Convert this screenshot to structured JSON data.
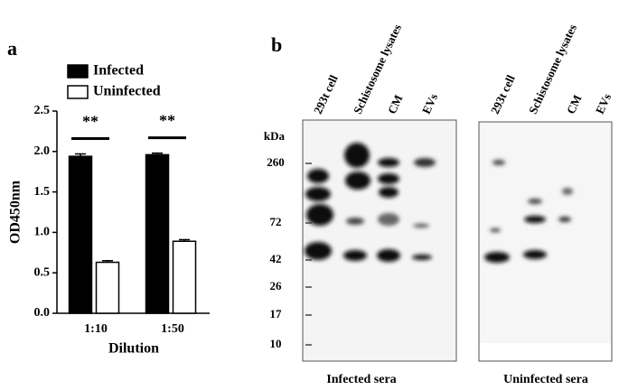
{
  "panel_a": "a",
  "panel_b": "b",
  "chart_data": {
    "type": "bar",
    "ylabel": "OD450nm",
    "xlabel": "Dilution",
    "categories": [
      "1:10",
      "1:50"
    ],
    "series": [
      {
        "name": "Infected",
        "color": "#000000",
        "values": [
          1.94,
          1.96
        ],
        "errors": [
          0.03,
          0.02
        ]
      },
      {
        "name": "Uninfected",
        "color": "#ffffff",
        "values": [
          0.63,
          0.89
        ],
        "errors": [
          0.02,
          0.02
        ]
      }
    ],
    "annotations": [
      "**",
      "**"
    ],
    "ylim": [
      0,
      2.5
    ],
    "yticks": [
      {
        "value": 0,
        "label": "0.0"
      },
      {
        "value": 0.5,
        "label": "0.5"
      },
      {
        "value": 1,
        "label": "1.0"
      },
      {
        "value": 1.5,
        "label": "1.5"
      },
      {
        "value": 2,
        "label": "2.0"
      },
      {
        "value": 2.5,
        "label": "2.5"
      }
    ]
  },
  "blot": {
    "unit": "kDa",
    "markers": [
      260,
      72,
      42,
      26,
      17,
      10
    ],
    "lanes_left": [
      "293t cell",
      "Schistosome lysates",
      "CM",
      "EVs"
    ],
    "lanes_right": [
      "293t cell",
      "Schistosome lysates",
      "CM",
      "EVs"
    ],
    "caption_left": "Infected sera",
    "caption_right": "Uninfected sera"
  }
}
